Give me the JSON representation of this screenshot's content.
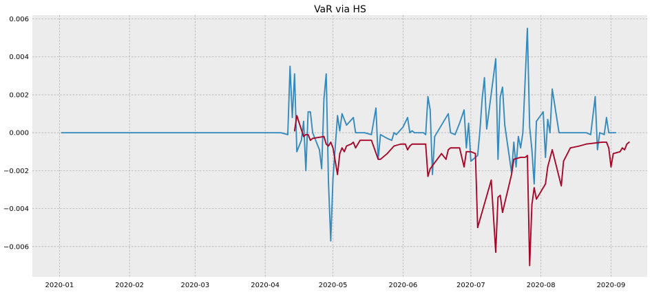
{
  "chart_data": {
    "type": "line",
    "title": "VaR via HS",
    "xlabel": "",
    "ylabel": "",
    "grid": true,
    "legend": "none",
    "colors": {
      "background": "#ececec",
      "series_blue": "#348abd",
      "series_red": "#a60628",
      "grid": "#b0b0b0"
    },
    "xlim": [
      "2019-12-20",
      "2020-09-17"
    ],
    "ylim": [
      -0.0076,
      0.0062
    ],
    "x_ticks": [
      "2020-01-01",
      "2020-02-01",
      "2020-03-01",
      "2020-04-01",
      "2020-05-01",
      "2020-06-01",
      "2020-07-01",
      "2020-08-01",
      "2020-09-01"
    ],
    "x_tick_labels": [
      "2020-01",
      "2020-02",
      "2020-03",
      "2020-04",
      "2020-05",
      "2020-06",
      "2020-07",
      "2020-08",
      "2020-09"
    ],
    "y_ticks": [
      -0.006,
      -0.004,
      -0.002,
      0.0,
      0.002,
      0.004,
      0.006
    ],
    "y_tick_labels": [
      "−0.006",
      "−0.004",
      "−0.002",
      "0.000",
      "0.002",
      "0.004",
      "0.006"
    ],
    "series": [
      {
        "color": "#348abd",
        "points": [
          [
            "2020-01-02",
            0.0
          ],
          [
            "2020-04-08",
            0.0
          ],
          [
            "2020-04-11",
            -0.0001
          ],
          [
            "2020-04-12",
            0.0035
          ],
          [
            "2020-04-13",
            0.0008
          ],
          [
            "2020-04-14",
            0.0031
          ],
          [
            "2020-04-15",
            -0.001
          ],
          [
            "2020-04-17",
            -0.0004
          ],
          [
            "2020-04-18",
            0.0006
          ],
          [
            "2020-04-19",
            -0.002
          ],
          [
            "2020-04-20",
            0.0011
          ],
          [
            "2020-04-21",
            0.0011
          ],
          [
            "2020-04-22",
            0.0
          ],
          [
            "2020-04-24",
            -0.0006
          ],
          [
            "2020-04-25",
            -0.0009
          ],
          [
            "2020-04-26",
            -0.0019
          ],
          [
            "2020-04-27",
            0.0018
          ],
          [
            "2020-04-28",
            0.0031
          ],
          [
            "2020-04-29",
            -0.0026
          ],
          [
            "2020-04-30",
            -0.0057
          ],
          [
            "2020-05-01",
            -0.0024
          ],
          [
            "2020-05-03",
            0.0009
          ],
          [
            "2020-05-04",
            0.0001
          ],
          [
            "2020-05-05",
            0.001
          ],
          [
            "2020-05-07",
            0.0004
          ],
          [
            "2020-05-10",
            0.0008
          ],
          [
            "2020-05-11",
            0.0
          ],
          [
            "2020-05-15",
            0.0
          ],
          [
            "2020-05-18",
            -0.0001
          ],
          [
            "2020-05-20",
            0.0013
          ],
          [
            "2020-05-21",
            -0.0014
          ],
          [
            "2020-05-22",
            -0.0001
          ],
          [
            "2020-05-25",
            -0.0003
          ],
          [
            "2020-05-27",
            -0.0004
          ],
          [
            "2020-05-28",
            0.0
          ],
          [
            "2020-05-29",
            -0.0001
          ],
          [
            "2020-06-01",
            0.0003
          ],
          [
            "2020-06-03",
            0.0008
          ],
          [
            "2020-06-04",
            0.0
          ],
          [
            "2020-06-05",
            0.0001
          ],
          [
            "2020-06-06",
            0.0
          ],
          [
            "2020-06-10",
            0.0
          ],
          [
            "2020-06-11",
            -0.0001
          ],
          [
            "2020-06-12",
            0.0019
          ],
          [
            "2020-06-13",
            0.0012
          ],
          [
            "2020-06-14",
            -0.0022
          ],
          [
            "2020-06-15",
            -0.0002
          ],
          [
            "2020-06-21",
            0.001
          ],
          [
            "2020-06-22",
            0.0
          ],
          [
            "2020-06-24",
            -0.0001
          ],
          [
            "2020-06-26",
            0.0005
          ],
          [
            "2020-06-28",
            0.0012
          ],
          [
            "2020-06-29",
            -0.0008
          ],
          [
            "2020-06-30",
            0.0005
          ],
          [
            "2020-07-01",
            -0.0015
          ],
          [
            "2020-07-04",
            -0.0012
          ],
          [
            "2020-07-05",
            0.0001
          ],
          [
            "2020-07-06",
            0.0018
          ],
          [
            "2020-07-07",
            0.0029
          ],
          [
            "2020-07-08",
            0.0002
          ],
          [
            "2020-07-12",
            0.0039
          ],
          [
            "2020-07-13",
            -0.0014
          ],
          [
            "2020-07-14",
            0.0019
          ],
          [
            "2020-07-15",
            0.0024
          ],
          [
            "2020-07-16",
            0.0004
          ],
          [
            "2020-07-19",
            -0.0021
          ],
          [
            "2020-07-20",
            -0.0005
          ],
          [
            "2020-07-21",
            -0.0018
          ],
          [
            "2020-07-22",
            -0.0002
          ],
          [
            "2020-07-23",
            -0.0008
          ],
          [
            "2020-07-24",
            0.0
          ],
          [
            "2020-07-26",
            0.0055
          ],
          [
            "2020-07-27",
            0.0003
          ],
          [
            "2020-07-28",
            -0.0009
          ],
          [
            "2020-07-29",
            -0.0027
          ],
          [
            "2020-07-30",
            0.0006
          ],
          [
            "2020-08-02",
            0.0011
          ],
          [
            "2020-08-03",
            -0.0013
          ],
          [
            "2020-08-04",
            0.0007
          ],
          [
            "2020-08-05",
            0.0
          ],
          [
            "2020-08-06",
            0.0023
          ],
          [
            "2020-08-09",
            0.0
          ],
          [
            "2020-08-21",
            0.0
          ],
          [
            "2020-08-23",
            -0.0001
          ],
          [
            "2020-08-25",
            0.0019
          ],
          [
            "2020-08-26",
            -0.0009
          ],
          [
            "2020-08-27",
            0.0
          ],
          [
            "2020-08-29",
            -0.0001
          ],
          [
            "2020-08-30",
            0.0008
          ],
          [
            "2020-08-31",
            0.0
          ],
          [
            "2020-09-03",
            0.0
          ]
        ]
      },
      {
        "color": "#a60628",
        "points": [
          [
            "2020-04-14",
            0.0001
          ],
          [
            "2020-04-15",
            0.0009
          ],
          [
            "2020-04-18",
            -0.0002
          ],
          [
            "2020-04-19",
            -0.0001
          ],
          [
            "2020-04-20",
            -0.0001
          ],
          [
            "2020-04-21",
            -0.0004
          ],
          [
            "2020-04-22",
            -0.0003
          ],
          [
            "2020-04-27",
            -0.0002
          ],
          [
            "2020-04-28",
            -0.0006
          ],
          [
            "2020-04-29",
            -0.0007
          ],
          [
            "2020-04-30",
            -0.0005
          ],
          [
            "2020-05-01",
            -0.0008
          ],
          [
            "2020-05-03",
            -0.0022
          ],
          [
            "2020-05-04",
            -0.0011
          ],
          [
            "2020-05-05",
            -0.0008
          ],
          [
            "2020-05-06",
            -0.001
          ],
          [
            "2020-05-07",
            -0.0007
          ],
          [
            "2020-05-09",
            -0.0006
          ],
          [
            "2020-05-10",
            -0.0005
          ],
          [
            "2020-05-11",
            -0.0008
          ],
          [
            "2020-05-13",
            -0.0004
          ],
          [
            "2020-05-18",
            -0.0004
          ],
          [
            "2020-05-21",
            -0.0014
          ],
          [
            "2020-05-22",
            -0.0014
          ],
          [
            "2020-05-25",
            -0.0011
          ],
          [
            "2020-05-28",
            -0.0007
          ],
          [
            "2020-05-31",
            -0.0006
          ],
          [
            "2020-06-02",
            -0.0006
          ],
          [
            "2020-06-03",
            -0.0009
          ],
          [
            "2020-06-04",
            -0.0007
          ],
          [
            "2020-06-05",
            -0.0006
          ],
          [
            "2020-06-11",
            -0.0006
          ],
          [
            "2020-06-12",
            -0.0023
          ],
          [
            "2020-06-13",
            -0.0019
          ],
          [
            "2020-06-18",
            -0.0011
          ],
          [
            "2020-06-20",
            -0.0014
          ],
          [
            "2020-06-21",
            -0.0009
          ],
          [
            "2020-06-22",
            -0.0008
          ],
          [
            "2020-06-24",
            -0.0008
          ],
          [
            "2020-06-26",
            -0.0008
          ],
          [
            "2020-06-28",
            -0.0018
          ],
          [
            "2020-06-29",
            -0.001
          ],
          [
            "2020-07-01",
            -0.001
          ],
          [
            "2020-07-03",
            -0.0011
          ],
          [
            "2020-07-04",
            -0.005
          ],
          [
            "2020-07-10",
            -0.0025
          ],
          [
            "2020-07-12",
            -0.0063
          ],
          [
            "2020-07-13",
            -0.0034
          ],
          [
            "2020-07-14",
            -0.0033
          ],
          [
            "2020-07-15",
            -0.0042
          ],
          [
            "2020-07-19",
            -0.0022
          ],
          [
            "2020-07-20",
            -0.0014
          ],
          [
            "2020-07-23",
            -0.0013
          ],
          [
            "2020-07-25",
            -0.0013
          ],
          [
            "2020-07-26",
            -0.0012
          ],
          [
            "2020-07-27",
            -0.007
          ],
          [
            "2020-07-28",
            -0.0038
          ],
          [
            "2020-07-29",
            -0.0029
          ],
          [
            "2020-07-30",
            -0.0035
          ],
          [
            "2020-08-03",
            -0.0027
          ],
          [
            "2020-08-04",
            -0.0018
          ],
          [
            "2020-08-06",
            -0.0009
          ],
          [
            "2020-08-10",
            -0.0028
          ],
          [
            "2020-08-11",
            -0.0015
          ],
          [
            "2020-08-14",
            -0.0008
          ],
          [
            "2020-08-18",
            -0.0007
          ],
          [
            "2020-08-21",
            -0.0006
          ],
          [
            "2020-08-28",
            -0.0005
          ],
          [
            "2020-08-30",
            -0.0005
          ],
          [
            "2020-08-31",
            -0.0008
          ],
          [
            "2020-09-01",
            -0.0018
          ],
          [
            "2020-09-02",
            -0.0011
          ],
          [
            "2020-09-05",
            -0.001
          ],
          [
            "2020-09-06",
            -0.0008
          ],
          [
            "2020-09-07",
            -0.0009
          ],
          [
            "2020-09-08",
            -0.0006
          ],
          [
            "2020-09-09",
            -0.0005
          ]
        ]
      }
    ]
  }
}
